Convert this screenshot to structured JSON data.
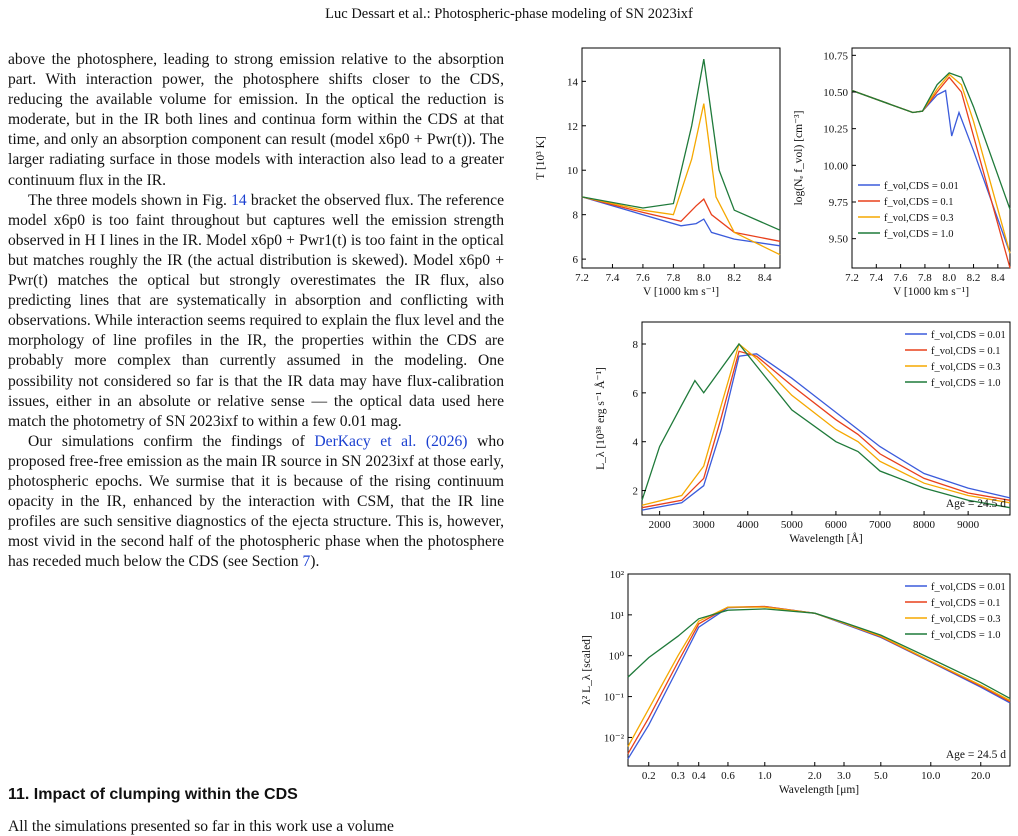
{
  "header": {
    "running_head": "Luc Dessart et al.: Photospheric-phase modeling of SN 2023ixf"
  },
  "body": {
    "p1": "above the photosphere, leading to strong emission relative to the absorption part. With interaction power, the photosphere shifts closer to the CDS, reducing the available volume for emission. In the optical the reduction is moderate, but in the IR both lines and continua form within the CDS at that time, and only an absorption component can result (model x6p0 + Pwr(t)). The larger radiating surface in those models with interaction also lead to a greater continuum flux in the IR.",
    "p2_a": "The three models shown in Fig. ",
    "p2_ref": "14",
    "p2_b": " bracket the observed flux. The reference model x6p0 is too faint throughout but captures well the emission strength observed in H I lines in the IR. Model x6p0 + Pwr1(t) is too faint in the optical but matches roughly the IR (the actual distribution is skewed). Model x6p0 + Pwr(t) matches the optical but strongly overestimates the IR flux, also predicting lines that are systematically in absorption and conflicting with observations. While interaction seems required to explain the flux level and the morphology of line profiles in the IR, the properties within the CDS are probably more complex than currently assumed in the modeling. One possibility not considered so far is that the IR data may have flux-calibration issues, either in an absolute or relative sense — the optical data used here match the photometry of SN 2023ixf to within a few 0.01 mag.",
    "p3_a": "Our simulations confirm the findings of ",
    "p3_ref": "DerKacy et al. (2026)",
    "p3_b": " who proposed free-free emission as the main IR source in SN 2023ixf at those early, photospheric epochs. We surmise that it is because of the rising continuum opacity in the IR, enhanced by the interaction with CSM, that the IR line profiles are such sensitive diagnostics of the ejecta structure. This is, however, most vivid in the second half of the photospheric phase when the photosphere has receded much below the CDS (see Section ",
    "p3_ref2": "7",
    "p3_c": ").",
    "section_heading": "11. Impact of clumping within the CDS",
    "last_line": "All the simulations presented so far in this work use a volume"
  },
  "colors": {
    "c001": "#3b5bdb",
    "c01": "#e8401c",
    "c03": "#f5a800",
    "c10": "#1f7a3a"
  },
  "chart_data": [
    {
      "type": "line",
      "xlabel": "V [1000 km s⁻¹]",
      "ylabel": "T [10³ K]",
      "xlim": [
        7.2,
        8.5
      ],
      "ylim": [
        5.6,
        15.5
      ],
      "xticks": [
        "7.2",
        "7.4",
        "7.6",
        "7.8",
        "8.0",
        "8.2",
        "8.4"
      ],
      "yticks": [
        "6",
        "8",
        "10",
        "12",
        "14"
      ],
      "series": [
        {
          "key": "c001",
          "x": [
            7.2,
            7.6,
            7.85,
            7.95,
            8.0,
            8.05,
            8.2,
            8.5
          ],
          "values": [
            8.8,
            8.0,
            7.5,
            7.6,
            7.8,
            7.2,
            6.9,
            6.6
          ]
        },
        {
          "key": "c01",
          "x": [
            7.2,
            7.6,
            7.85,
            7.95,
            8.0,
            8.05,
            8.2,
            8.5
          ],
          "values": [
            8.8,
            8.1,
            7.7,
            8.4,
            8.7,
            8.0,
            7.2,
            6.8
          ]
        },
        {
          "key": "c03",
          "x": [
            7.2,
            7.6,
            7.8,
            7.92,
            8.0,
            8.08,
            8.2,
            8.5
          ],
          "values": [
            8.8,
            8.2,
            8.0,
            10.5,
            13.0,
            8.8,
            7.2,
            6.2
          ]
        },
        {
          "key": "c10",
          "x": [
            7.2,
            7.6,
            7.8,
            7.92,
            8.0,
            8.1,
            8.2,
            8.5
          ],
          "values": [
            8.8,
            8.3,
            8.5,
            12.0,
            15.0,
            10.0,
            8.2,
            7.3
          ]
        }
      ]
    },
    {
      "type": "line",
      "xlabel": "V [1000 km s⁻¹]",
      "ylabel": "log(Nₑ f_vol) [cm⁻³]",
      "xlim": [
        7.2,
        8.5
      ],
      "ylim": [
        9.3,
        10.8
      ],
      "xticks": [
        "7.2",
        "7.4",
        "7.6",
        "7.8",
        "8.0",
        "8.2",
        "8.4"
      ],
      "yticks": [
        "9.50",
        "9.75",
        "10.00",
        "10.25",
        "10.50",
        "10.75"
      ],
      "legend": [
        "f_vol,CDS = 0.01",
        "f_vol,CDS = 0.1",
        "f_vol,CDS = 0.3",
        "f_vol,CDS = 1.0"
      ],
      "series": [
        {
          "key": "c001",
          "x": [
            7.2,
            7.7,
            7.78,
            7.9,
            7.97,
            8.02,
            8.08,
            8.2,
            8.5
          ],
          "values": [
            10.51,
            10.36,
            10.37,
            10.48,
            10.51,
            10.2,
            10.36,
            10.1,
            9.4
          ]
        },
        {
          "key": "c01",
          "x": [
            7.2,
            7.7,
            7.78,
            7.9,
            8.0,
            8.1,
            8.2,
            8.5
          ],
          "values": [
            10.51,
            10.36,
            10.37,
            10.5,
            10.6,
            10.5,
            10.2,
            9.3
          ]
        },
        {
          "key": "c03",
          "x": [
            7.2,
            7.7,
            7.78,
            7.9,
            8.0,
            8.1,
            8.2,
            8.5
          ],
          "values": [
            10.51,
            10.36,
            10.37,
            10.52,
            10.62,
            10.55,
            10.3,
            9.4
          ]
        },
        {
          "key": "c10",
          "x": [
            7.2,
            7.7,
            7.78,
            7.9,
            8.0,
            8.1,
            8.2,
            8.5
          ],
          "values": [
            10.51,
            10.36,
            10.37,
            10.55,
            10.63,
            10.6,
            10.4,
            9.7
          ]
        }
      ]
    },
    {
      "type": "line",
      "xlabel": "Wavelength [Å]",
      "ylabel": "L_λ [10³⁸ erg s⁻¹ Å⁻¹]",
      "xlim": [
        1600,
        9950
      ],
      "ylim": [
        1.0,
        8.9
      ],
      "xticks": [
        "2000",
        "3000",
        "4000",
        "5000",
        "6000",
        "7000",
        "8000",
        "9000"
      ],
      "yticks": [
        "2",
        "4",
        "6",
        "8"
      ],
      "legend": [
        "f_vol,CDS = 0.01",
        "f_vol,CDS = 0.1",
        "f_vol,CDS = 0.3",
        "f_vol,CDS = 1.0"
      ],
      "annotation": "Age = 24.5 d",
      "series": [
        {
          "key": "c001",
          "x": [
            1600,
            2500,
            3000,
            3400,
            3800,
            4200,
            5000,
            6000,
            6500,
            7000,
            8000,
            9000,
            9950
          ],
          "values": [
            1.2,
            1.5,
            2.2,
            4.5,
            7.5,
            7.6,
            6.6,
            5.2,
            4.5,
            3.8,
            2.7,
            2.1,
            1.7
          ]
        },
        {
          "key": "c01",
          "x": [
            1600,
            2500,
            3000,
            3400,
            3800,
            4200,
            5000,
            6000,
            6500,
            7000,
            8000,
            9000,
            9950
          ],
          "values": [
            1.3,
            1.6,
            2.5,
            5.0,
            7.7,
            7.5,
            6.3,
            4.9,
            4.3,
            3.5,
            2.5,
            1.9,
            1.6
          ]
        },
        {
          "key": "c03",
          "x": [
            1600,
            2500,
            3000,
            3400,
            3800,
            4200,
            5000,
            6000,
            6500,
            7000,
            8000,
            9000,
            9950
          ],
          "values": [
            1.4,
            1.8,
            3.0,
            5.5,
            8.0,
            7.4,
            5.9,
            4.5,
            4.0,
            3.2,
            2.3,
            1.8,
            1.5
          ]
        },
        {
          "key": "c10",
          "x": [
            1600,
            2000,
            2500,
            2800,
            3000,
            3400,
            3800,
            4200,
            5000,
            6000,
            6500,
            7000,
            8000,
            9000,
            9950
          ],
          "values": [
            1.6,
            3.8,
            5.5,
            6.5,
            6.0,
            7.0,
            8.0,
            7.1,
            5.3,
            4.0,
            3.6,
            2.8,
            2.1,
            1.6,
            1.3
          ]
        }
      ]
    },
    {
      "type": "line",
      "xscale": "log",
      "yscale": "log",
      "xlabel": "Wavelength [μm]",
      "ylabel": "λ² L_λ [scaled]",
      "xlim": [
        0.15,
        30
      ],
      "ylim": [
        0.002,
        100
      ],
      "xticks": [
        "0.2",
        "0.3",
        "0.4",
        "0.6",
        "1.0",
        "2.0",
        "3.0",
        "5.0",
        "10.0",
        "20.0"
      ],
      "yticks": [
        "10⁻²",
        "10⁻¹",
        "10⁰",
        "10¹",
        "10²"
      ],
      "legend": [
        "f_vol,CDS = 0.01",
        "f_vol,CDS = 0.1",
        "f_vol,CDS = 0.3",
        "f_vol,CDS = 1.0"
      ],
      "annotation": "Age = 24.5 d",
      "series": [
        {
          "key": "c001",
          "x": [
            0.15,
            0.2,
            0.3,
            0.4,
            0.6,
            1.0,
            2.0,
            3.0,
            5.0,
            10,
            20,
            30
          ],
          "values": [
            0.003,
            0.02,
            0.5,
            5,
            15,
            16,
            11,
            6,
            2.8,
            0.7,
            0.17,
            0.07
          ]
        },
        {
          "key": "c01",
          "x": [
            0.15,
            0.2,
            0.3,
            0.4,
            0.6,
            1.0,
            2.0,
            3.0,
            5.0,
            10,
            20,
            30
          ],
          "values": [
            0.004,
            0.03,
            0.7,
            6,
            15.5,
            16,
            11,
            6.2,
            2.9,
            0.72,
            0.18,
            0.075
          ]
        },
        {
          "key": "c03",
          "x": [
            0.15,
            0.2,
            0.3,
            0.4,
            0.6,
            1.0,
            2.0,
            3.0,
            5.0,
            10,
            20,
            30
          ],
          "values": [
            0.006,
            0.05,
            1.0,
            7,
            15.5,
            15.5,
            11,
            6.3,
            3.0,
            0.74,
            0.19,
            0.08
          ]
        },
        {
          "key": "c10",
          "x": [
            0.15,
            0.2,
            0.3,
            0.4,
            0.6,
            1.0,
            2.0,
            3.0,
            5.0,
            10,
            20,
            30
          ],
          "values": [
            0.3,
            0.9,
            3,
            8,
            13,
            14,
            11,
            6.5,
            3.2,
            0.85,
            0.22,
            0.09
          ]
        }
      ]
    }
  ]
}
